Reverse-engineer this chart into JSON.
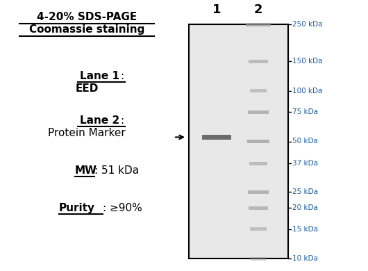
{
  "title_line1": "4-20% SDS-PAGE",
  "title_line2": "Coomassie staining",
  "lane1_label": "Lane 1",
  "lane1_desc": "EED",
  "lane2_label": "Lane 2",
  "lane2_desc": "Protein Marker",
  "mw_label": "MW",
  "mw_value": ": 51 kDa",
  "purity_label": "Purity",
  "purity_value": ": ≥90%",
  "lane_numbers": [
    "1",
    "2"
  ],
  "marker_bands_kda": [
    250,
    150,
    100,
    75,
    50,
    37,
    25,
    20,
    15,
    10
  ],
  "marker_labels": [
    "250 kDa",
    "150 kDa",
    "100 kDa",
    "75 kDa",
    "50 kDa",
    "37 kDa",
    "25 kDa",
    "20 kDa",
    "15 kDa",
    "10 kDa"
  ],
  "gel_bg_color": "#e8e8e8",
  "text_color_blue": "#1a5ea8",
  "text_color_black": "#000000",
  "protein_band_kda": 53,
  "fig_width": 5.3,
  "fig_height": 3.9
}
